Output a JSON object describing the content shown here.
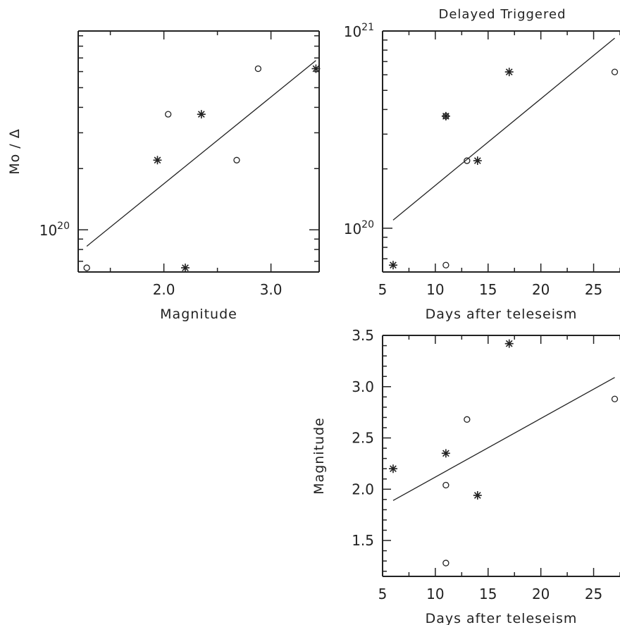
{
  "colors": {
    "axis": "#222222",
    "marker": "#222222",
    "background": "#ffffff"
  },
  "chart_data": [
    {
      "type": "scatter",
      "panel": "top-left",
      "title": "",
      "xlabel": "Magnitude",
      "ylabel": "Mo / Δ",
      "xlim": [
        1.2,
        3.45
      ],
      "ylim": [
        6.2e+19,
        9.5e+20
      ],
      "yscale": "log",
      "grid": false,
      "xticks": [
        {
          "value": 2.0,
          "label": "2.0"
        },
        {
          "value": 3.0,
          "label": "3.0"
        }
      ],
      "yticks": [
        {
          "value": 1e+20,
          "base": "10",
          "exp": "20"
        }
      ],
      "series": [
        {
          "marker": "asterisk",
          "points": [
            [
              1.94,
              2.2e+20
            ],
            [
              2.2,
              6.5e+19
            ],
            [
              2.35,
              3.7e+20
            ],
            [
              3.42,
              6.2e+20
            ]
          ]
        },
        {
          "marker": "circle",
          "points": [
            [
              1.28,
              6.5e+19
            ],
            [
              2.04,
              3.7e+20
            ],
            [
              2.68,
              2.2e+20
            ],
            [
              2.88,
              6.2e+20
            ]
          ]
        }
      ],
      "fit_line": [
        [
          1.28,
          8.3e+19
        ],
        [
          3.42,
          6.8e+20
        ]
      ]
    },
    {
      "type": "scatter",
      "panel": "top-right",
      "title": "Delayed Triggered",
      "xlabel": "Days after teleseism",
      "ylabel": "",
      "xlim": [
        5,
        27.5
      ],
      "ylim": [
        6e+19,
        1e+21
      ],
      "yscale": "log",
      "grid": false,
      "xticks": [
        {
          "value": 5,
          "label": "5"
        },
        {
          "value": 10,
          "label": "10"
        },
        {
          "value": 15,
          "label": "15"
        },
        {
          "value": 20,
          "label": "20"
        },
        {
          "value": 25,
          "label": "25"
        }
      ],
      "yticks": [
        {
          "value": 1e+20,
          "base": "10",
          "exp": "20"
        },
        {
          "value": 1e+21,
          "base": "10",
          "exp": "21"
        }
      ],
      "series": [
        {
          "marker": "asterisk",
          "points": [
            [
              6,
              6.5e+19
            ],
            [
              11,
              3.7e+20
            ],
            [
              14,
              2.2e+20
            ],
            [
              17,
              6.2e+20
            ]
          ]
        },
        {
          "marker": "circle",
          "points": [
            [
              11,
              6.5e+19
            ],
            [
              11,
              3.7e+20
            ],
            [
              13,
              2.2e+20
            ],
            [
              27,
              6.2e+20
            ]
          ]
        }
      ],
      "fit_line": [
        [
          6,
          1.1e+20
        ],
        [
          27,
          9.2e+20
        ]
      ]
    },
    {
      "type": "scatter",
      "panel": "bottom-right",
      "title": "",
      "xlabel": "Days after teleseism",
      "ylabel": "Magnitude",
      "xlim": [
        5,
        27.5
      ],
      "ylim": [
        1.15,
        3.5
      ],
      "yscale": "linear",
      "grid": false,
      "xticks": [
        {
          "value": 5,
          "label": "5"
        },
        {
          "value": 10,
          "label": "10"
        },
        {
          "value": 15,
          "label": "15"
        },
        {
          "value": 20,
          "label": "20"
        },
        {
          "value": 25,
          "label": "25"
        }
      ],
      "yticks": [
        {
          "value": 1.5,
          "label": "1.5"
        },
        {
          "value": 2.0,
          "label": "2.0"
        },
        {
          "value": 2.5,
          "label": "2.5"
        },
        {
          "value": 3.0,
          "label": "3.0"
        },
        {
          "value": 3.5,
          "label": "3.5"
        }
      ],
      "series": [
        {
          "marker": "asterisk",
          "points": [
            [
              6,
              2.2
            ],
            [
              11,
              2.35
            ],
            [
              14,
              1.94
            ],
            [
              17,
              3.42
            ]
          ]
        },
        {
          "marker": "circle",
          "points": [
            [
              11,
              1.28
            ],
            [
              11,
              2.04
            ],
            [
              13,
              2.68
            ],
            [
              27,
              2.88
            ]
          ]
        }
      ],
      "fit_line": [
        [
          6,
          1.89
        ],
        [
          27,
          3.09
        ]
      ]
    }
  ]
}
